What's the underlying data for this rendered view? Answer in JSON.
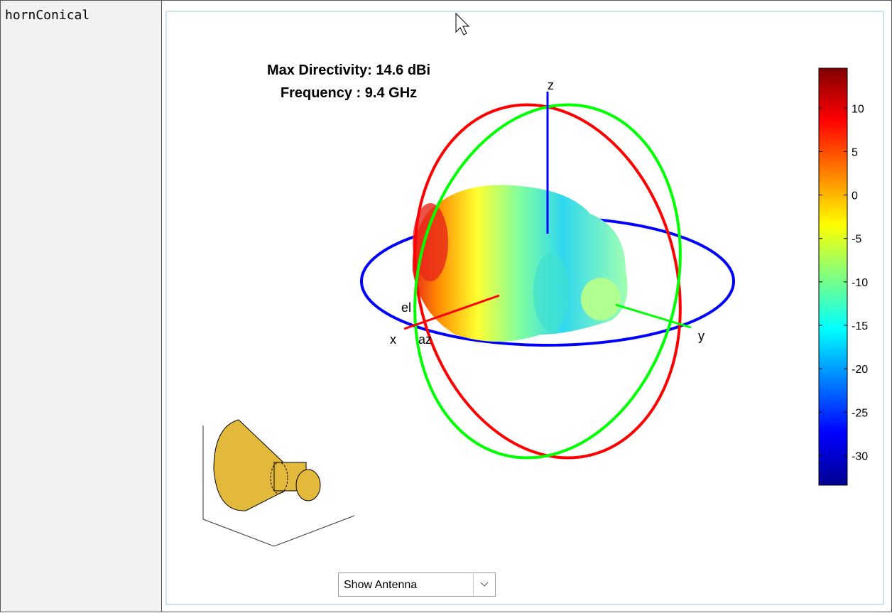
{
  "row": {
    "label": "hornConical"
  },
  "figure": {
    "title": [
      "Max Directivity: 14.6 dBi",
      "Frequency : 9.4 GHz"
    ],
    "axis_labels": {
      "x": "x",
      "y": "y",
      "z": "z",
      "el": "el",
      "az": "az"
    },
    "colorbar": {
      "lim": [
        -33.4,
        14.6
      ],
      "ticks": [
        10,
        5,
        0,
        -5,
        -10,
        -15,
        -20,
        -25,
        -30
      ]
    }
  },
  "dropdown": {
    "value": "Show Antenna"
  }
}
